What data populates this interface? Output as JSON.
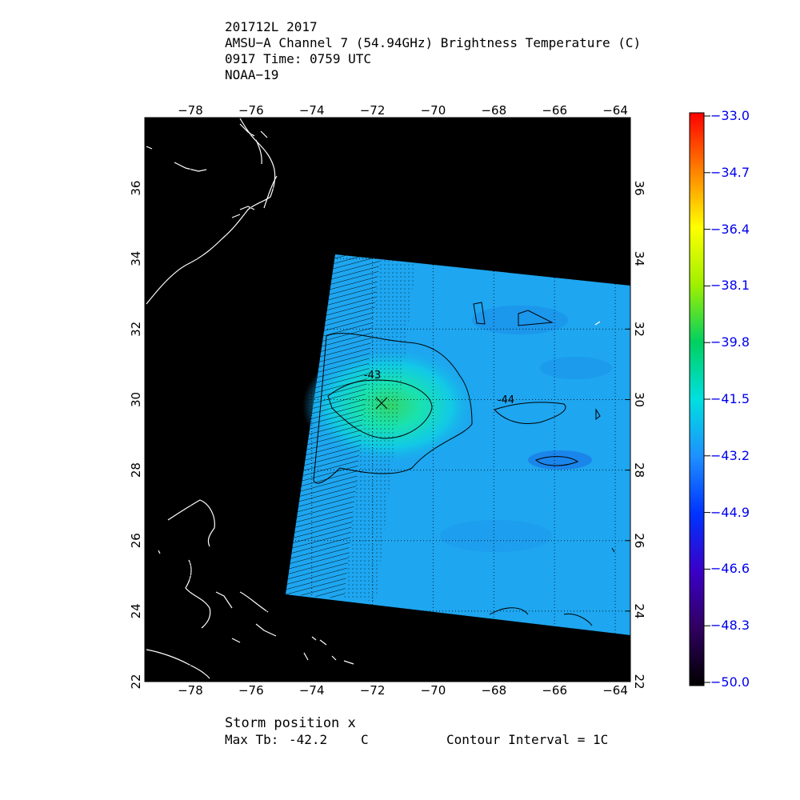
{
  "header": {
    "line1": "201712L 2017",
    "line2": "AMSU−A Channel 7 (54.94GHz) Brightness Temperature (C)",
    "line3": "0917 Time: 0759 UTC",
    "line4": "NOAA−19"
  },
  "map": {
    "lon_range": [
      -79.5,
      -63.5
    ],
    "lat_range": [
      22,
      38
    ],
    "lon_ticks": [
      -78,
      -76,
      -74,
      -72,
      -70,
      -68,
      -66,
      -64
    ],
    "lat_ticks": [
      22,
      24,
      26,
      28,
      30,
      32,
      34,
      36
    ],
    "lon_tick_labels": [
      "−78",
      "−76",
      "−74",
      "−72",
      "−70",
      "−68",
      "−66",
      "−64"
    ],
    "lat_tick_labels": [
      "22",
      "24",
      "26",
      "28",
      "30",
      "32",
      "34",
      "36"
    ],
    "storm_position": {
      "lon": -71.7,
      "lat": 29.9
    },
    "contour_labels": [
      {
        "text": "-43",
        "lon": -72.0,
        "lat": 30.6
      },
      {
        "text": "-44",
        "lon": -67.6,
        "lat": 29.9
      }
    ],
    "background_color": "#000000",
    "coast_color": "#ffffff"
  },
  "colorbar": {
    "min": -50.0,
    "max": -33.0,
    "labels": [
      "-33.0",
      "-34.7",
      "-36.4",
      "-38.1",
      "-39.8",
      "-41.5",
      "-43.2",
      "-44.9",
      "-46.6",
      "-48.3",
      "-50.0"
    ],
    "label_color": "#0000ee"
  },
  "footer": {
    "storm_position": "Storm position x",
    "max_tb_label": "Max Tb:",
    "max_tb_value": "-42.2",
    "max_tb_unit": "C",
    "contour_interval": "Contour Interval = 1C"
  }
}
